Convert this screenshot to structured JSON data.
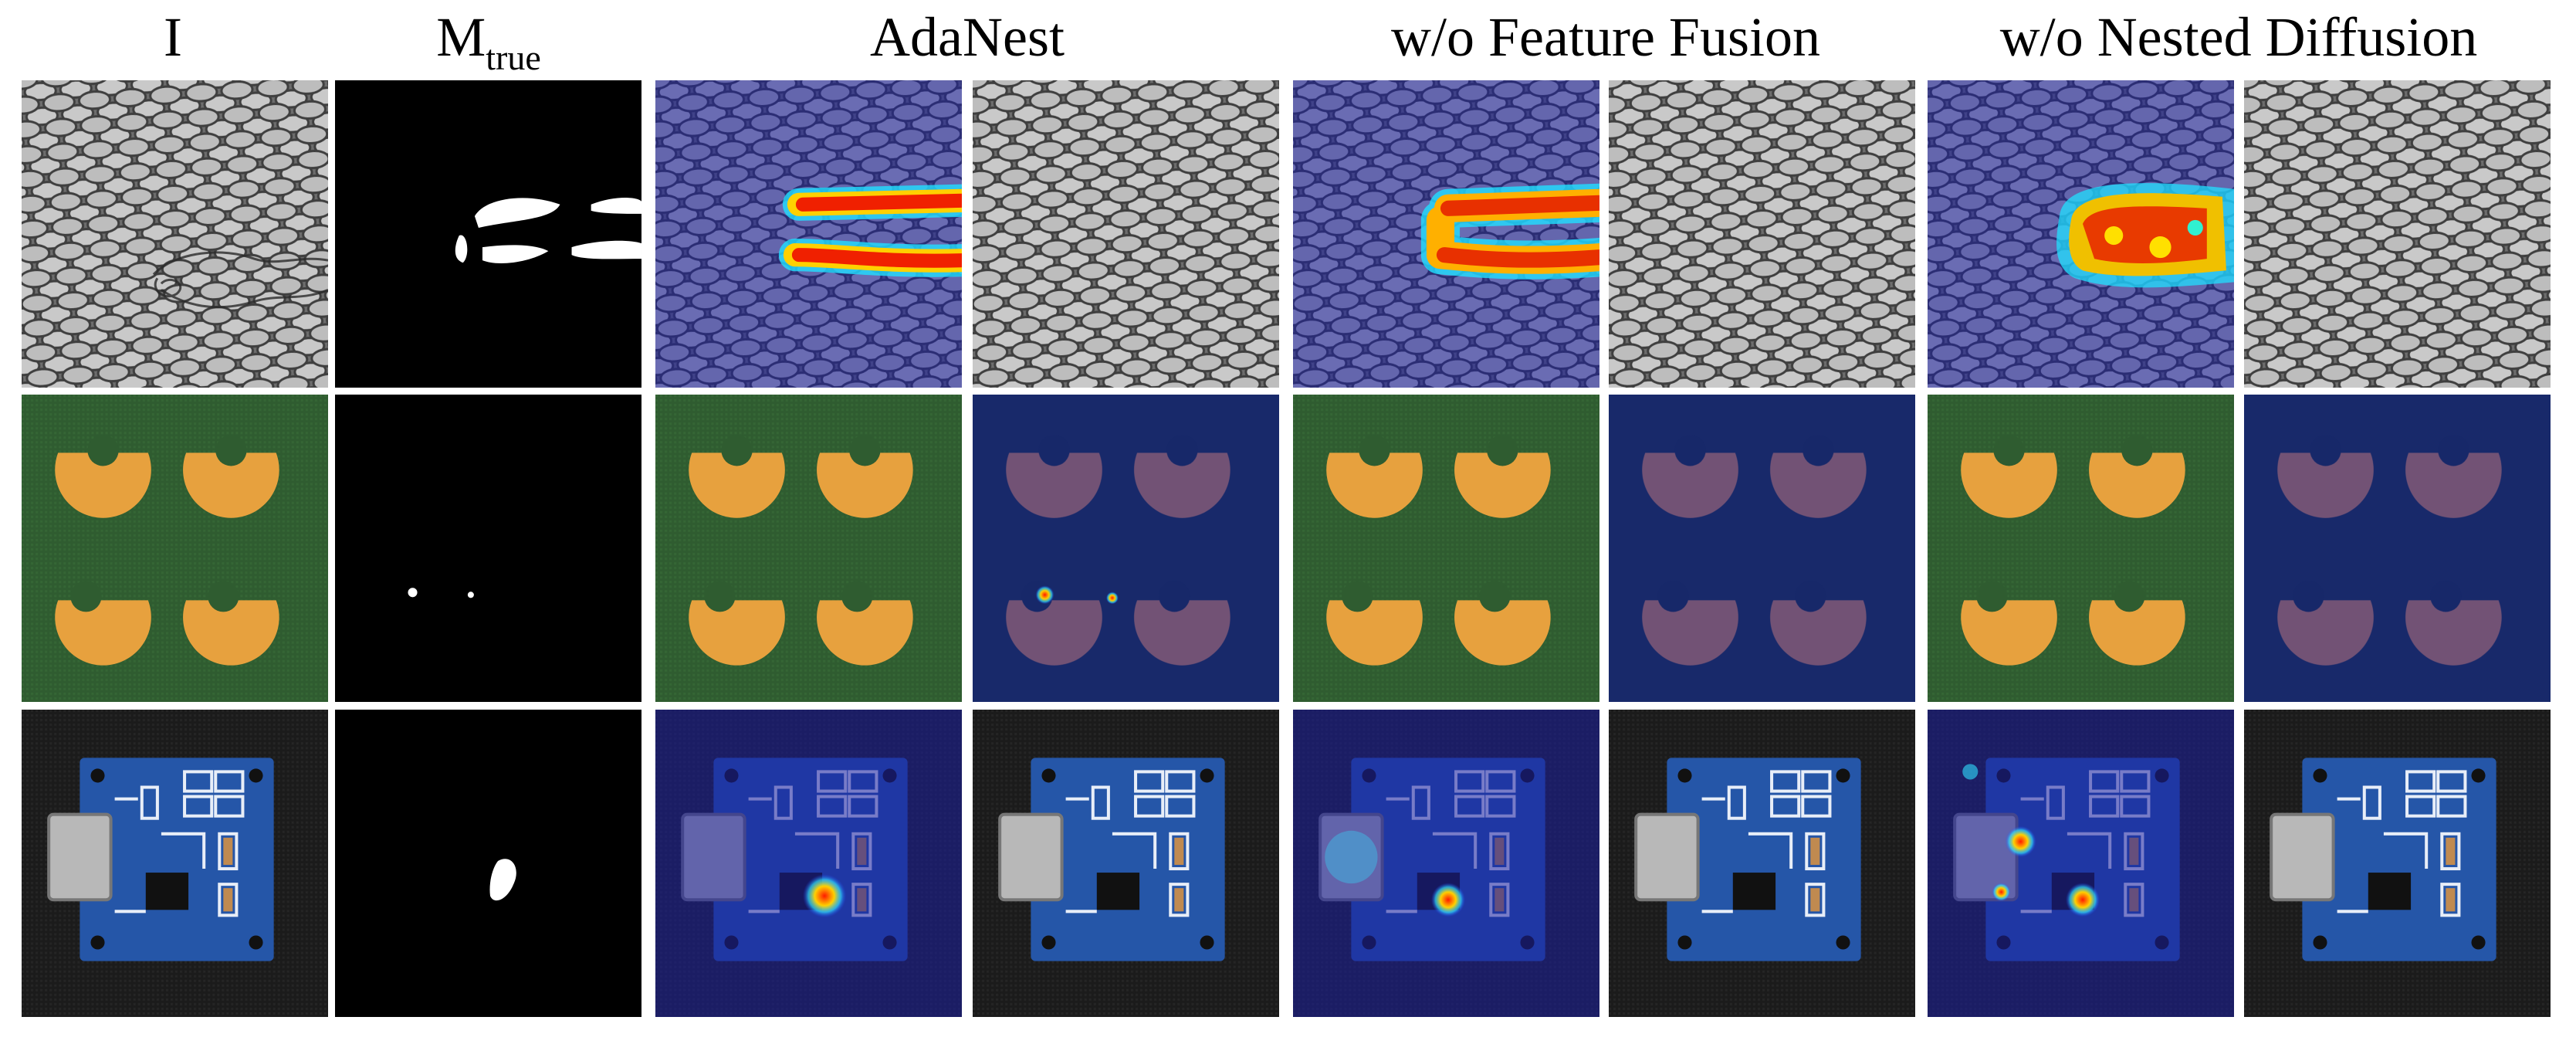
{
  "headers": {
    "input": "I",
    "mask": {
      "main": "M",
      "sub": "true"
    },
    "adanest": "AdaNest",
    "wo_feature_fusion": "w/o Feature Fusion",
    "wo_nested_diffusion": "w/o Nested Diffusion"
  }
}
